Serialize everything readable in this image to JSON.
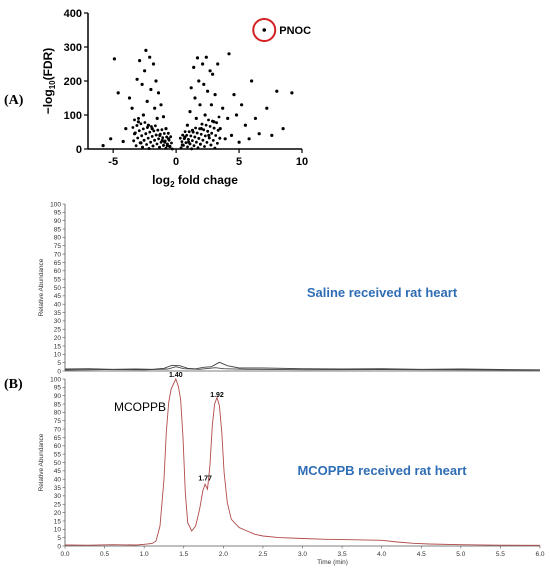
{
  "panels": {
    "a_label": "(A)",
    "b_label": "(B)"
  },
  "chart_data": [
    {
      "type": "scatter",
      "title": "",
      "xlabel": "log2 fold chage",
      "xlabel_base": "log",
      "xlabel_sub": "2",
      "xlabel_rest": " fold chage",
      "ylabel_pre": "−log",
      "ylabel_sub": "10",
      "ylabel_rest": "(FDR)",
      "xlim": [
        -7,
        10
      ],
      "ylim": [
        0,
        400
      ],
      "xticks": [
        -5,
        0,
        5,
        10
      ],
      "yticks": [
        0,
        100,
        200,
        300,
        400
      ],
      "point_color": "#000000",
      "highlight": {
        "label": "PNOC",
        "x": 7,
        "y": 350,
        "circle_color": "#d42020"
      },
      "points": [
        [
          -5.8,
          10
        ],
        [
          -5.2,
          30
        ],
        [
          -4.9,
          265
        ],
        [
          -4.6,
          165
        ],
        [
          -4.2,
          22
        ],
        [
          -4.0,
          60
        ],
        [
          -3.7,
          150
        ],
        [
          -3.5,
          120
        ],
        [
          -3.3,
          45
        ],
        [
          -3.1,
          205
        ],
        [
          -3.0,
          80
        ],
        [
          -2.9,
          260
        ],
        [
          -2.8,
          18
        ],
        [
          -2.7,
          190
        ],
        [
          -2.6,
          100
        ],
        [
          -2.5,
          230
        ],
        [
          -2.4,
          290
        ],
        [
          -2.3,
          140
        ],
        [
          -2.2,
          70
        ],
        [
          -2.1,
          270
        ],
        [
          -2.0,
          175
        ],
        [
          -1.9,
          60
        ],
        [
          -1.8,
          250
        ],
        [
          -1.7,
          120
        ],
        [
          -1.6,
          200
        ],
        [
          -1.5,
          90
        ],
        [
          -1.4,
          165
        ],
        [
          -1.3,
          40
        ],
        [
          -1.2,
          130
        ],
        [
          -1.1,
          25
        ],
        [
          -1.0,
          95
        ],
        [
          -0.9,
          20
        ],
        [
          -0.8,
          60
        ],
        [
          -0.7,
          10
        ],
        [
          -0.6,
          30
        ],
        [
          -0.5,
          8
        ],
        [
          0.5,
          12
        ],
        [
          0.7,
          35
        ],
        [
          0.9,
          70
        ],
        [
          1.0,
          20
        ],
        [
          1.1,
          110
        ],
        [
          1.2,
          180
        ],
        [
          1.3,
          55
        ],
        [
          1.4,
          240
        ],
        [
          1.5,
          150
        ],
        [
          1.6,
          90
        ],
        [
          1.7,
          268
        ],
        [
          1.8,
          200
        ],
        [
          1.9,
          130
        ],
        [
          2.0,
          60
        ],
        [
          2.1,
          250
        ],
        [
          2.2,
          190
        ],
        [
          2.3,
          100
        ],
        [
          2.4,
          270
        ],
        [
          2.5,
          170
        ],
        [
          2.6,
          40
        ],
        [
          2.7,
          230
        ],
        [
          2.8,
          130
        ],
        [
          2.9,
          220
        ],
        [
          3.0,
          80
        ],
        [
          3.1,
          160
        ],
        [
          3.3,
          250
        ],
        [
          3.5,
          60
        ],
        [
          3.7,
          120
        ],
        [
          3.9,
          30
        ],
        [
          4.1,
          90
        ],
        [
          4.2,
          280
        ],
        [
          4.4,
          40
        ],
        [
          4.6,
          160
        ],
        [
          4.8,
          100
        ],
        [
          5.0,
          20
        ],
        [
          5.2,
          130
        ],
        [
          5.5,
          70
        ],
        [
          5.8,
          30
        ],
        [
          6.0,
          200
        ],
        [
          6.3,
          90
        ],
        [
          6.6,
          45
        ],
        [
          7.2,
          120
        ],
        [
          7.6,
          40
        ],
        [
          8.0,
          170
        ],
        [
          8.5,
          60
        ],
        [
          9.2,
          165
        ]
      ]
    },
    {
      "type": "line",
      "title": "",
      "annotation": "Saline received rat heart",
      "xlabel": "",
      "ylabel": "Relative Abundance",
      "xlim": [
        0,
        6
      ],
      "ylim": [
        0,
        100
      ],
      "yticks": [
        0,
        5,
        10,
        15,
        20,
        25,
        30,
        35,
        40,
        45,
        50,
        55,
        60,
        65,
        70,
        75,
        80,
        85,
        90,
        95,
        100
      ],
      "line_color": "#444444",
      "series": [
        {
          "x": [
            0,
            0.3,
            0.6,
            0.9,
            1.1,
            1.25,
            1.35,
            1.45,
            1.55,
            1.65,
            1.75,
            1.85,
            1.95,
            2.05,
            2.2,
            2.5,
            3.0,
            3.5,
            4.0,
            4.5,
            5.0,
            5.5,
            6.0
          ],
          "y": [
            1.2,
            1.4,
            1.0,
            1.2,
            1.0,
            1.6,
            3.4,
            3.2,
            1.6,
            1.3,
            2.2,
            2.6,
            5.2,
            3.2,
            1.8,
            1.8,
            1.4,
            1.2,
            1.4,
            1.0,
            1.2,
            0.9,
            0.7
          ]
        },
        {
          "x": [
            0,
            0.5,
            1.0,
            1.3,
            1.4,
            1.5,
            1.7,
            1.9,
            2.0,
            2.3,
            3.0,
            4.0,
            5.0,
            6.0
          ],
          "y": [
            0.6,
            0.9,
            0.7,
            1.2,
            2.6,
            1.4,
            1.0,
            2.0,
            1.4,
            1.0,
            0.8,
            0.9,
            0.7,
            0.5
          ]
        }
      ]
    },
    {
      "type": "line",
      "title": "",
      "annotation": "MCOPPB received rat heart",
      "compound_label": "MCOPPB",
      "xlabel": "Time (min)",
      "ylabel": "Relative Abundance",
      "xlim": [
        0,
        6
      ],
      "ylim": [
        0,
        100
      ],
      "yticks": [
        0,
        5,
        10,
        15,
        20,
        25,
        30,
        35,
        40,
        45,
        50,
        55,
        60,
        65,
        70,
        75,
        80,
        85,
        90,
        95,
        100
      ],
      "xticks": [
        "0.0",
        "0.5",
        "1.0",
        "1.5",
        "2.0",
        "2.5",
        "3.0",
        "3.5",
        "4.0",
        "4.5",
        "5.0",
        "5.5",
        "6.0"
      ],
      "peak_labels": [
        {
          "x": 1.4,
          "y": 100,
          "label": "1.40"
        },
        {
          "x": 1.77,
          "y": 38,
          "label": "1.77"
        },
        {
          "x": 1.92,
          "y": 88,
          "label": "1.92"
        }
      ],
      "line_color": "#b24a4a",
      "series": [
        {
          "x": [
            0,
            0.3,
            0.6,
            0.9,
            1.0,
            1.1,
            1.15,
            1.2,
            1.25,
            1.28,
            1.31,
            1.34,
            1.37,
            1.4,
            1.43,
            1.46,
            1.49,
            1.52,
            1.55,
            1.6,
            1.65,
            1.7,
            1.74,
            1.77,
            1.8,
            1.83,
            1.86,
            1.89,
            1.92,
            1.95,
            1.98,
            2.01,
            2.05,
            2.1,
            2.2,
            2.3,
            2.4,
            2.5,
            2.7,
            3.0,
            3.3,
            3.6,
            4.0,
            4.2,
            4.4,
            4.6,
            5.0,
            5.5,
            6.0
          ],
          "y": [
            0.6,
            0.5,
            0.8,
            0.6,
            1.0,
            1.5,
            3,
            12,
            40,
            68,
            86,
            94,
            97,
            100,
            96,
            88,
            65,
            32,
            14,
            9,
            12,
            22,
            33,
            37,
            34,
            48,
            72,
            85,
            89,
            84,
            68,
            44,
            26,
            16,
            11,
            9,
            7,
            6,
            5,
            4.5,
            4,
            3.8,
            3.4,
            2.4,
            1.6,
            1.2,
            0.8,
            0.5,
            0.4
          ]
        }
      ]
    }
  ]
}
